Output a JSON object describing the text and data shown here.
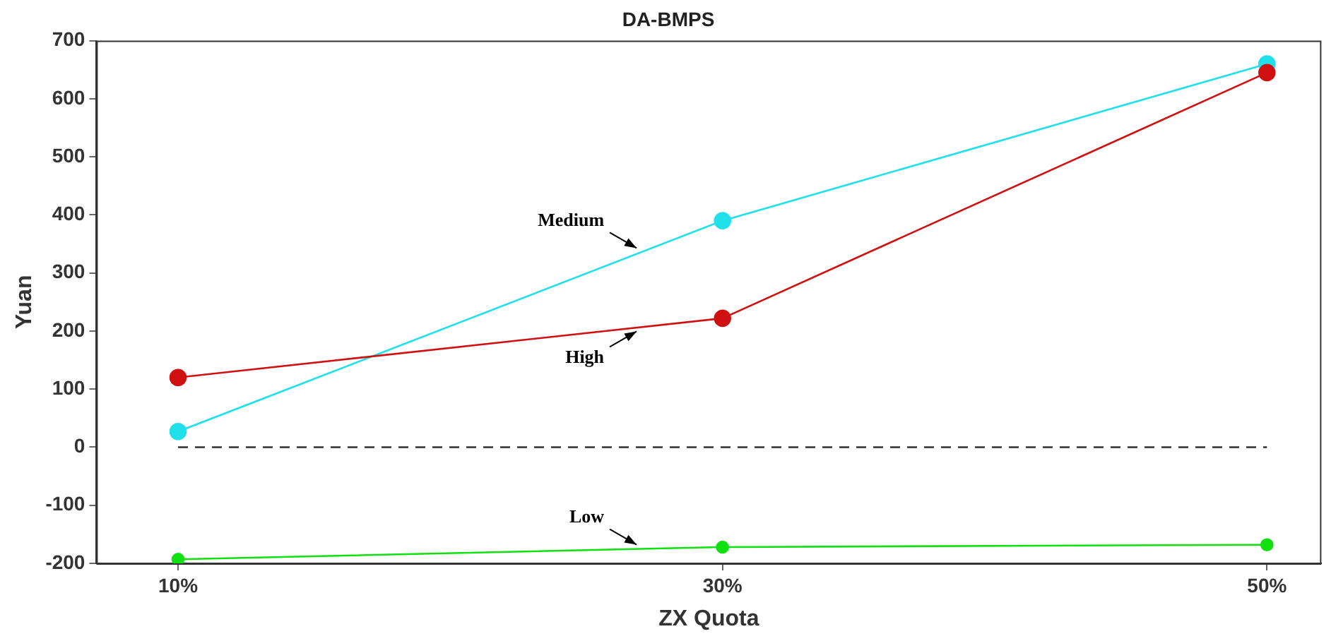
{
  "chart_data": {
    "type": "line",
    "title": "DA-BMPS",
    "xlabel": "ZX Quota",
    "ylabel": "Yuan",
    "x": [
      10,
      30,
      50
    ],
    "xlim": [
      7,
      52
    ],
    "xticks": [
      {
        "value": 10,
        "label": "10%"
      },
      {
        "value": 30,
        "label": "30%"
      },
      {
        "value": 50,
        "label": "50%"
      }
    ],
    "ylim": [
      -200,
      700
    ],
    "yticks": [
      -200,
      -100,
      0,
      100,
      200,
      300,
      400,
      500,
      600,
      700
    ],
    "series": [
      {
        "name": "High",
        "color": "#d01010",
        "values": [
          120,
          222,
          645
        ]
      },
      {
        "name": "Medium",
        "color": "#20e0ea",
        "values": [
          27,
          390,
          660
        ]
      },
      {
        "name": "Low",
        "color": "#10e010",
        "values": [
          -193,
          -172,
          -168
        ]
      },
      {
        "color": "#303030",
        "values": [
          0,
          0,
          0
        ],
        "line_style": "dashed",
        "marker": "none"
      }
    ],
    "marker": "circle",
    "grid": false,
    "legend": false
  }
}
